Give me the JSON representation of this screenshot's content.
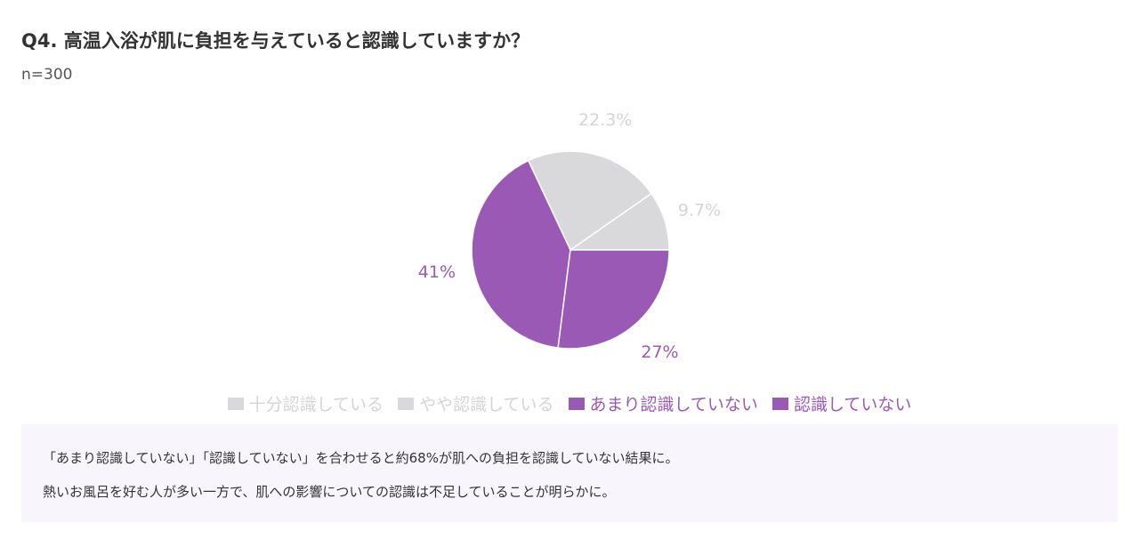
{
  "header": {
    "title": "Q4. 高温入浴が肌に負担を与えていると認識していますか？",
    "sample": "n=300"
  },
  "colors": {
    "gray": "#d9d9db",
    "purple": "#9b59b6",
    "gray_label": "#d4d4d6",
    "purple_label": "#9b59b6",
    "note_bg": "#f9f5fc"
  },
  "chart_data": {
    "type": "pie",
    "categories": [
      "十分認識している",
      "やや認識している",
      "あまり認識していない",
      "認識していない"
    ],
    "values": [
      9.7,
      22.3,
      41,
      27
    ],
    "data_labels": [
      "9.7%",
      "22.3%",
      "41%",
      "27%"
    ],
    "slice_colors": [
      "#d9d9db",
      "#d9d9db",
      "#9b59b6",
      "#9b59b6"
    ],
    "label_colors": [
      "#d4d4d6",
      "#d4d4d6",
      "#9b59b6",
      "#9b59b6"
    ],
    "legend_position": "bottom",
    "start": "3 o'clock, counter-clockwise"
  },
  "note": {
    "line1": "「あまり認識していない」「認識していない」を合わせると約68%が肌への負担を認識していない結果に。",
    "line2": "熱いお風呂を好む人が多い一方で、肌への影響についての認識は不足していることが明らかに。"
  }
}
